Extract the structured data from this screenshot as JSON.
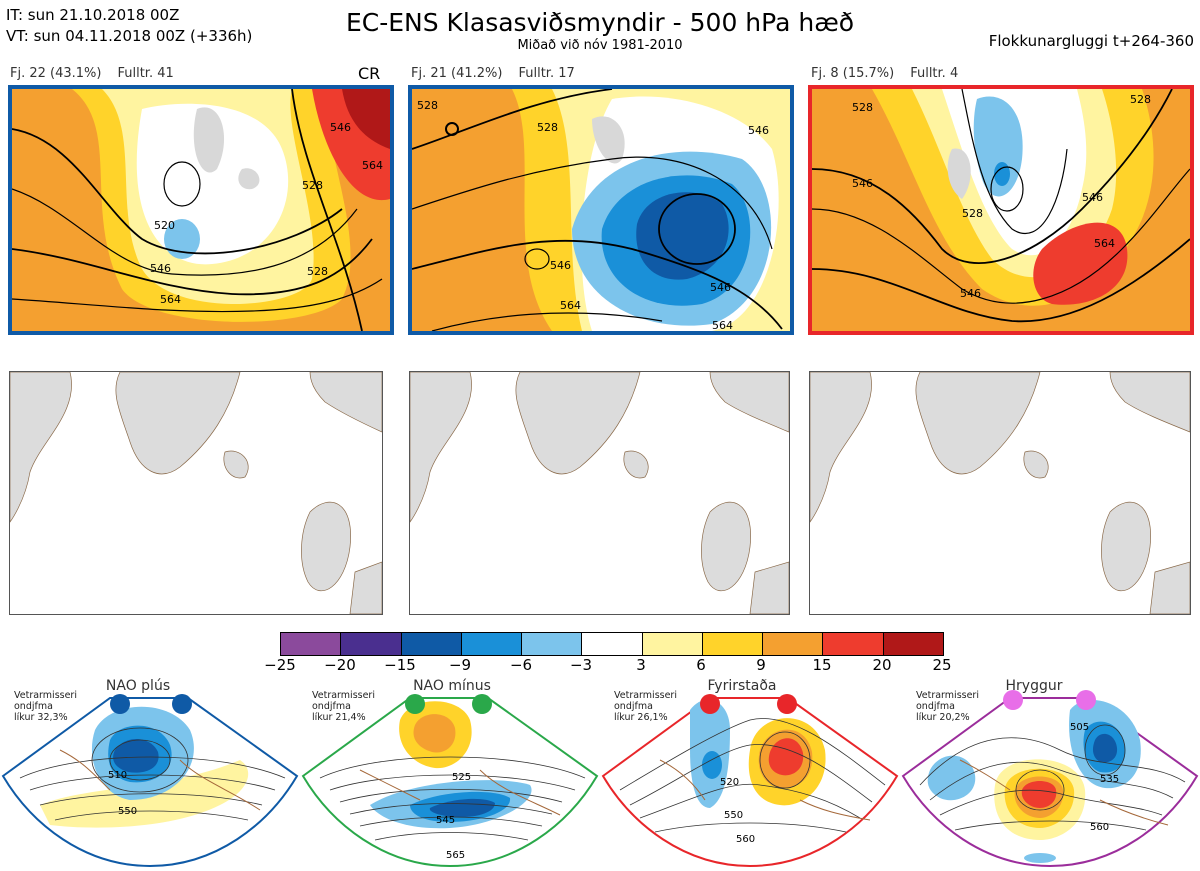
{
  "header": {
    "it": "IT: sun 21.10.2018 00Z",
    "vt": "VT: sun 04.11.2018 00Z  (+336h)",
    "title": "EC-ENS Klasasviðsmyndir - 500 hPa hæð",
    "subtitle": "Miðað við nóv 1981-2010",
    "window": "Flokkunargluggi t+264-360"
  },
  "clusters": [
    {
      "id": "Fj. 22 (43.1%)",
      "rep": "Fulltr. 41",
      "tag": "CR",
      "frame_color": "#0f5aa6",
      "contour_labels": [
        "520",
        "528",
        "546",
        "564",
        "546",
        "528",
        "564"
      ]
    },
    {
      "id": "Fj. 21 (41.2%)",
      "rep": "Fulltr. 17",
      "tag": "",
      "frame_color": "#0f5aa6",
      "contour_labels": [
        "528",
        "528",
        "546",
        "546",
        "564",
        "564",
        "546"
      ]
    },
    {
      "id": "Fj. 8 (15.7%)",
      "rep": "Fulltr. 4",
      "tag": "",
      "frame_color": "#e8262a",
      "contour_labels": [
        "528",
        "546",
        "528",
        "546",
        "564",
        "546",
        "528"
      ]
    }
  ],
  "colorbar": {
    "ticks": [
      "−25",
      "−20",
      "−15",
      "−9",
      "−6",
      "−3",
      "3",
      "6",
      "9",
      "15",
      "20",
      "25"
    ],
    "colors": [
      "#8b4a9c",
      "#4a2f8f",
      "#0f5aa6",
      "#1a90d8",
      "#7cc4ec",
      "#ffffff",
      "#fff4a0",
      "#ffd32a",
      "#f4a030",
      "#ee3c2e",
      "#b01818"
    ]
  },
  "regimes": [
    {
      "name": "NAO plús",
      "stat": [
        "Vetrarmisseri",
        "ondjfma",
        "líkur 32,3%"
      ],
      "color": "#0f5aa6",
      "labels": [
        "510",
        "550"
      ]
    },
    {
      "name": "NAO mínus",
      "stat": [
        "Vetrarmisseri",
        "ondjfma",
        "líkur 21,4%"
      ],
      "color": "#2aa84a",
      "labels": [
        "525",
        "545",
        "565"
      ]
    },
    {
      "name": "Fyrirstaða",
      "stat": [
        "Vetrarmisseri",
        "ondjfma",
        "líkur 26,1%"
      ],
      "color": "#e8262a",
      "labels": [
        "520",
        "550",
        "560"
      ]
    },
    {
      "name": "Hryggur",
      "stat": [
        "Vetrarmisseri",
        "ondjfma",
        "líkur 20,2%"
      ],
      "color": "#e86ee8",
      "labels": [
        "505",
        "535",
        "560"
      ]
    }
  ]
}
